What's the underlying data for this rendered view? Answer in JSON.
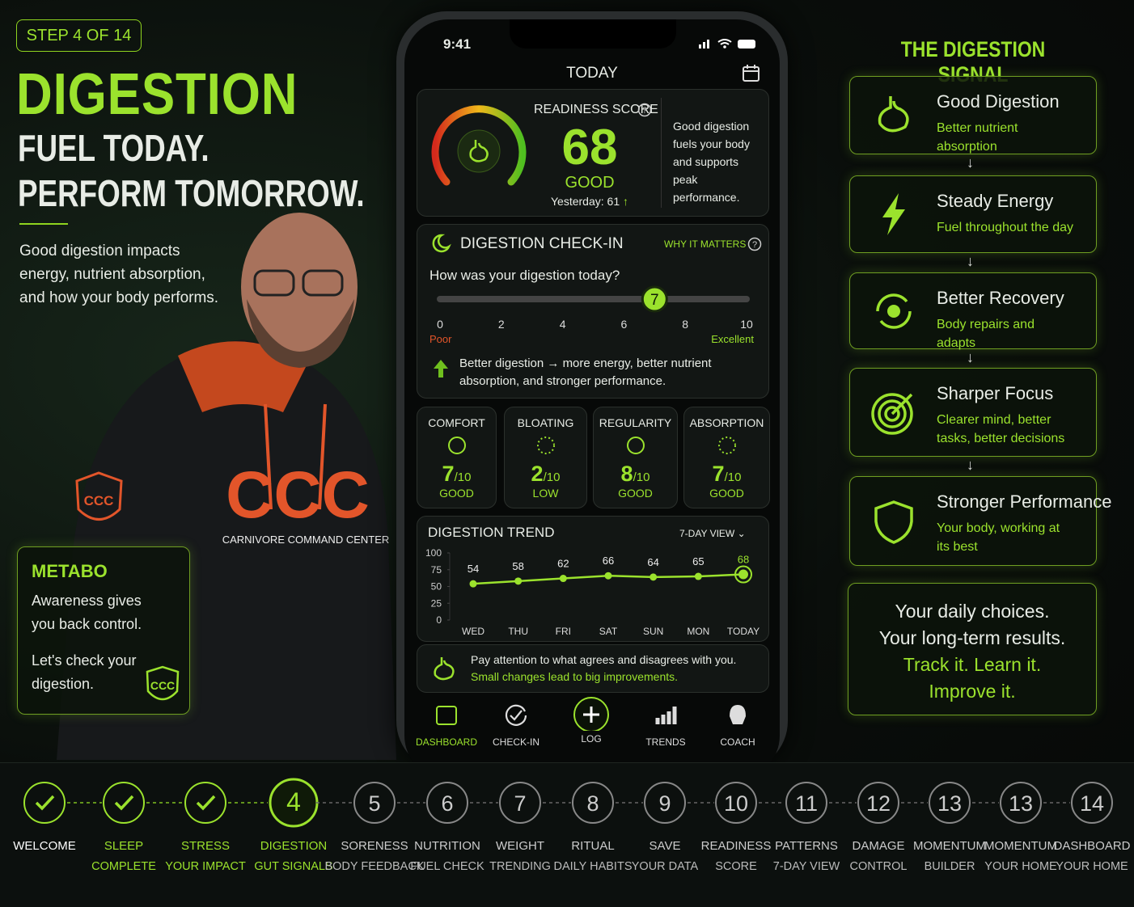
{
  "step_badge": "STEP 4 OF 14",
  "hero": {
    "title": "DIGESTION",
    "tagline": [
      "FUEL TODAY.",
      "PERFORM TOMORROW."
    ],
    "intro": "Good digestion impacts energy, nutrient absorption, and how your body performs."
  },
  "coach_photo": {
    "chest_logo": "CCC",
    "chest_text": "CARNIVORE COMMAND CENTER",
    "sleeve_logo": "CCC"
  },
  "metabo": {
    "title": "METABO",
    "lines": [
      "Awareness gives you back control.",
      "Let's check your digestion."
    ],
    "badge": "CCC"
  },
  "phone": {
    "time": "9:41",
    "header": "TODAY",
    "readiness": {
      "label": "READINESS SCORE",
      "score": 68,
      "status": "GOOD",
      "yesterday": "Yesterday: 61",
      "note": "Good digestion fuels your body and supports peak performance."
    },
    "checkin": {
      "title": "DIGESTION CHECK-IN",
      "link": "WHY IT MATTERS",
      "question": "How was your digestion today?",
      "value": 7,
      "ticks": [
        0,
        2,
        4,
        6,
        8,
        10
      ],
      "low_label": "Poor",
      "high_label": "Excellent",
      "note": "Better digestion → more energy, better nutrient absorption, and stronger performance."
    },
    "metrics": [
      {
        "name": "COMFORT",
        "value": 7,
        "scale": "/10",
        "status": "GOOD"
      },
      {
        "name": "BLOATING",
        "value": 2,
        "scale": "/10",
        "status": "LOW"
      },
      {
        "name": "REGULARITY",
        "value": 8,
        "scale": "/10",
        "status": "GOOD"
      },
      {
        "name": "ABSORPTION",
        "value": 7,
        "scale": "/10",
        "status": "GOOD"
      }
    ],
    "trend": {
      "type": "line",
      "title": "DIGESTION TREND",
      "view": "7-DAY VIEW",
      "color": "#9be22d",
      "categories": [
        "WED",
        "THU",
        "FRI",
        "SAT",
        "SUN",
        "MON",
        "TODAY"
      ],
      "values": [
        54,
        58,
        62,
        66,
        64,
        65,
        68
      ],
      "ylim": [
        0,
        100
      ],
      "yticks": [
        0,
        25,
        50,
        75,
        100
      ]
    },
    "tip": {
      "lines": [
        "Pay attention to what agrees and disagrees with you.",
        "Small changes lead to big improvements."
      ]
    },
    "nav": [
      {
        "label": "DASHBOARD",
        "active": true
      },
      {
        "label": "CHECK-IN",
        "active": false
      },
      {
        "label": "LOG",
        "active": false
      },
      {
        "label": "TRENDS",
        "active": false
      },
      {
        "label": "COACH",
        "active": false
      }
    ]
  },
  "signal": {
    "title": "THE DIGESTION SIGNAL",
    "cards": [
      {
        "title": "Good Digestion",
        "text": "Better nutrient absorption"
      },
      {
        "title": "Steady Energy",
        "text": "Fuel throughout the day"
      },
      {
        "title": "Better Recovery",
        "text": "Body repairs and adapts"
      },
      {
        "title": "Sharper Focus",
        "text": "Clearer mind, better tasks, better decisions"
      },
      {
        "title": "Stronger Performance",
        "text": "Your body, working at its best"
      }
    ],
    "quote": [
      "Your daily choices.",
      "Your long-term results.",
      "Track it. Learn it.",
      "Improve it."
    ]
  },
  "stepper": [
    {
      "status": "done",
      "label": "WELCOME"
    },
    {
      "status": "done",
      "label": "SLEEP",
      "sub": "COMPLETE"
    },
    {
      "status": "done",
      "label": "STRESS",
      "sub": "YOUR IMPACT"
    },
    {
      "status": "current",
      "number": 4,
      "label": "DIGESTION",
      "sub": "GUT SIGNALS"
    },
    {
      "status": "upcoming",
      "number": 5,
      "label": "SORENESS",
      "sub": "BODY FEEDBACK"
    },
    {
      "status": "upcoming",
      "number": 6,
      "label": "NUTRITION",
      "sub": "FUEL CHECK"
    },
    {
      "status": "upcoming",
      "number": 7,
      "label": "WEIGHT",
      "sub": "TRENDING"
    },
    {
      "status": "upcoming",
      "number": 8,
      "label": "RITUAL",
      "sub": "DAILY HABITS"
    },
    {
      "status": "upcoming",
      "number": 9,
      "label": "SAVE",
      "sub": "YOUR DATA"
    },
    {
      "status": "upcoming",
      "number": 10,
      "label": "READINESS",
      "sub": "SCORE"
    },
    {
      "status": "upcoming",
      "number": 11,
      "label": "PATTERNS",
      "sub": "7-DAY VIEW"
    },
    {
      "status": "upcoming",
      "number": 12,
      "label": "DAMAGE",
      "sub": "CONTROL"
    },
    {
      "status": "upcoming",
      "number": 13,
      "label": "MOMENTUM",
      "sub": "BUILDER"
    },
    {
      "status": "upcoming",
      "number": 13,
      "label": "MOMENTUM",
      "sub": "YOUR HOME"
    },
    {
      "status": "upcoming",
      "number": 14,
      "label": "DASHBOARD",
      "sub": "YOUR HOME"
    }
  ]
}
